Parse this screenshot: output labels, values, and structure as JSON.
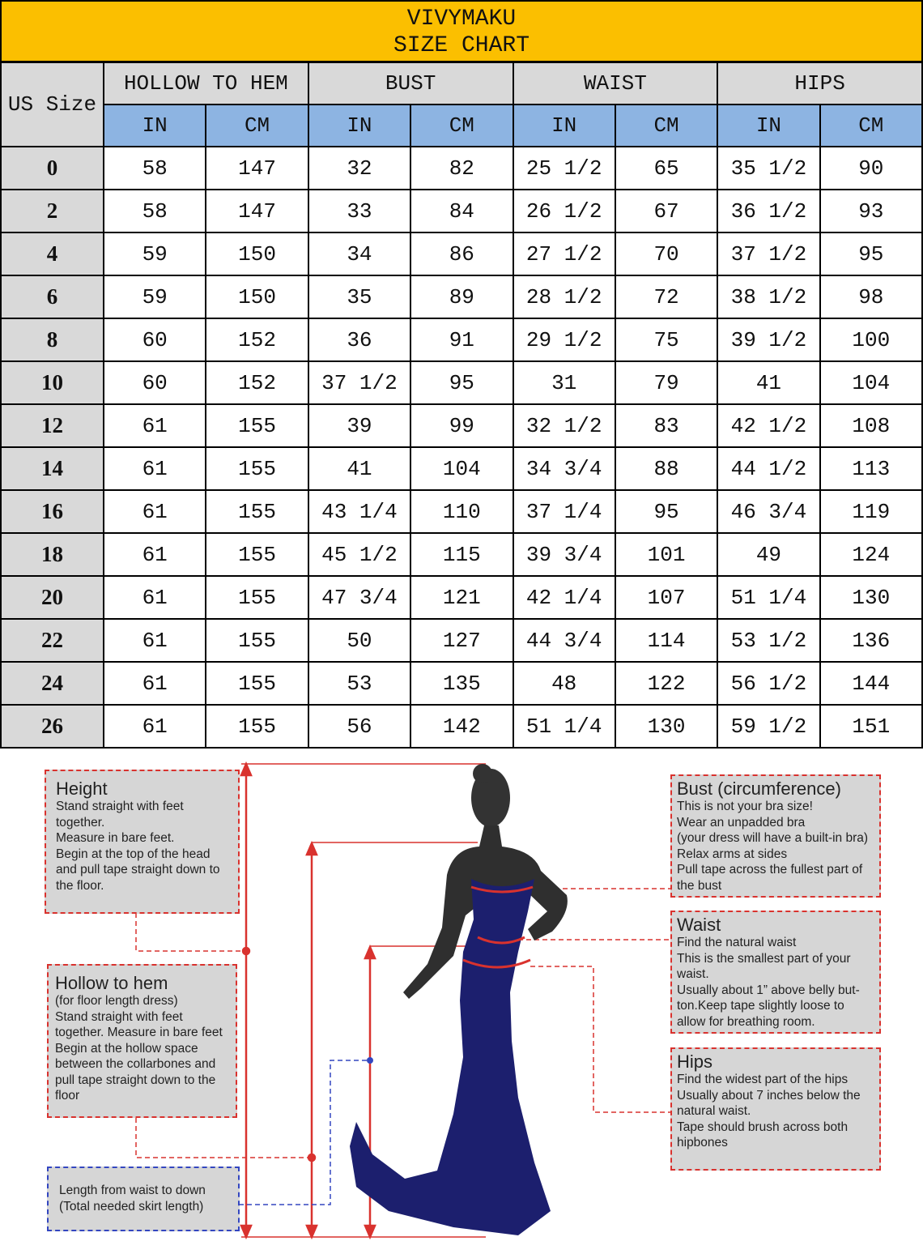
{
  "title": {
    "brand": "VIVYMAKU",
    "subtitle": "SIZE CHART"
  },
  "table": {
    "size_header": "US Size",
    "groups": [
      "HOLLOW TO HEM",
      "BUST",
      "WAIST",
      "HIPS"
    ],
    "units": [
      "IN",
      "CM",
      "IN",
      "CM",
      "IN",
      "CM",
      "IN",
      "CM"
    ],
    "rows": [
      [
        "0",
        "58",
        "147",
        "32",
        "82",
        "25 1/2",
        "65",
        "35 1/2",
        "90"
      ],
      [
        "2",
        "58",
        "147",
        "33",
        "84",
        "26 1/2",
        "67",
        "36 1/2",
        "93"
      ],
      [
        "4",
        "59",
        "150",
        "34",
        "86",
        "27 1/2",
        "70",
        "37 1/2",
        "95"
      ],
      [
        "6",
        "59",
        "150",
        "35",
        "89",
        "28 1/2",
        "72",
        "38 1/2",
        "98"
      ],
      [
        "8",
        "60",
        "152",
        "36",
        "91",
        "29 1/2",
        "75",
        "39 1/2",
        "100"
      ],
      [
        "10",
        "60",
        "152",
        "37 1/2",
        "95",
        "31",
        "79",
        "41",
        "104"
      ],
      [
        "12",
        "61",
        "155",
        "39",
        "99",
        "32 1/2",
        "83",
        "42 1/2",
        "108"
      ],
      [
        "14",
        "61",
        "155",
        "41",
        "104",
        "34 3/4",
        "88",
        "44 1/2",
        "113"
      ],
      [
        "16",
        "61",
        "155",
        "43 1/4",
        "110",
        "37 1/4",
        "95",
        "46 3/4",
        "119"
      ],
      [
        "18",
        "61",
        "155",
        "45 1/2",
        "115",
        "39 3/4",
        "101",
        "49",
        "124"
      ],
      [
        "20",
        "61",
        "155",
        "47 3/4",
        "121",
        "42 1/4",
        "107",
        "51 1/4",
        "130"
      ],
      [
        "22",
        "61",
        "155",
        "50",
        "127",
        "44 3/4",
        "114",
        "53 1/2",
        "136"
      ],
      [
        "24",
        "61",
        "155",
        "53",
        "135",
        "48",
        "122",
        "56 1/2",
        "144"
      ],
      [
        "26",
        "61",
        "155",
        "56",
        "142",
        "51 1/4",
        "130",
        "59 1/2",
        "151"
      ]
    ]
  },
  "guide": {
    "height": {
      "title": "Height",
      "text": "Stand straight with feet\ntogether.\nMeasure in bare feet.\nBegin at the top of the head\nand pull tape straight down to\nthe floor."
    },
    "hollow": {
      "title": "Hollow to hem",
      "text": "(for floor length dress)\nStand straight with feet\ntogether. Measure in bare feet\nBegin at the hollow space\nbetween the collarbones and\npull tape straight down to the\nfloor"
    },
    "skirt": {
      "text": "Length from waist to down\n(Total needed skirt length)"
    },
    "bust": {
      "title": "Bust (circumference)",
      "text": "This is not your bra size!\nWear an unpadded bra\n(your dress will have a built-in bra)\nRelax arms at sides\nPull tape across the fullest part of\nthe bust"
    },
    "waist": {
      "title": "Waist",
      "text": "Find the natural waist\nThis is the smallest part of your\nwaist.\nUsually about 1” above belly but-\nton.Keep tape slightly loose to\nallow for breathing room."
    },
    "hips": {
      "title": "Hips",
      "text": "Find the widest part of the hips\nUsually about 7 inches below the\nnatural waist.\nTape should brush across both\nhipbones"
    }
  },
  "colors": {
    "title_bg": "#fbbf00",
    "unit_bg": "#8db4e2",
    "header_bg": "#d9d9d9",
    "guide_line": "#d9322e",
    "skirt_line": "#3346c0",
    "dress": "#1c1f6e"
  }
}
